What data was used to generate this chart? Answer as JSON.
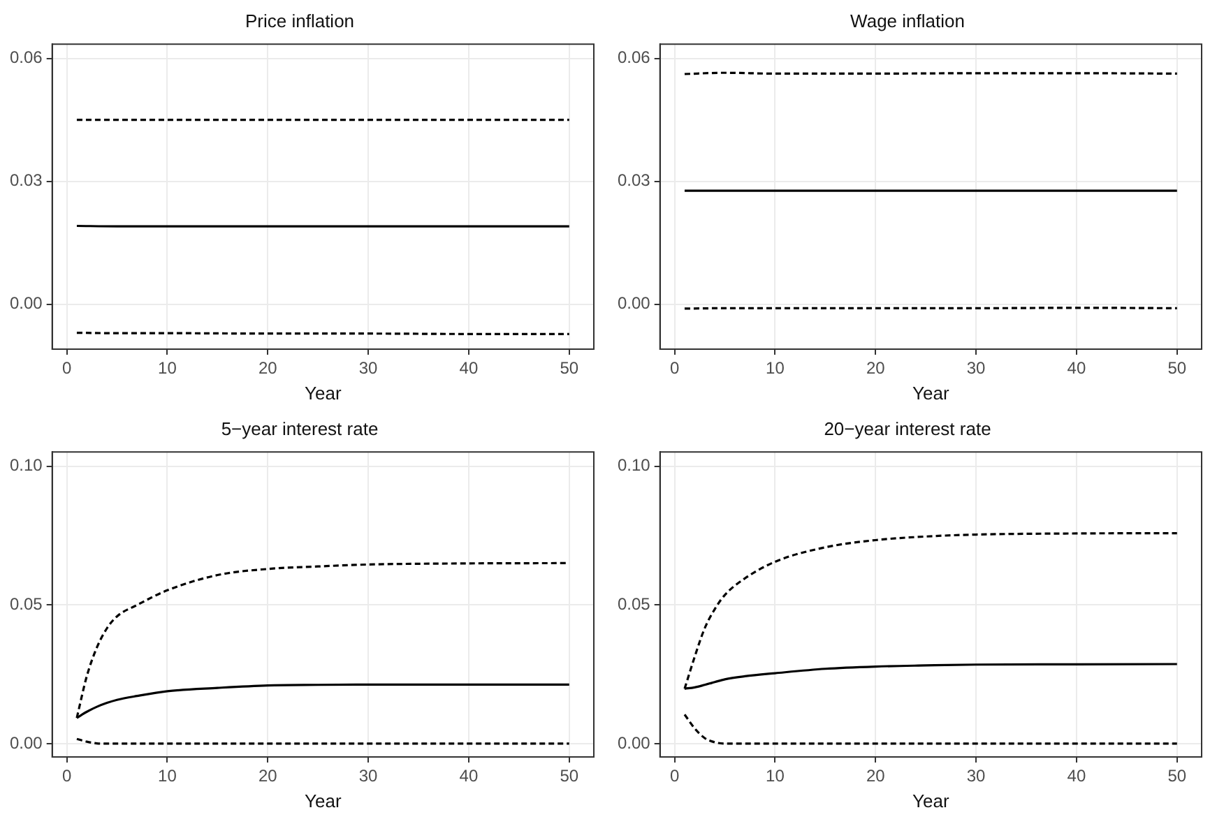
{
  "chart_data": [
    {
      "type": "line",
      "title": "Price inflation",
      "xlabel": "Year",
      "x": [
        1,
        5,
        10,
        20,
        30,
        40,
        50
      ],
      "xlim": [
        -1.45,
        52.45
      ],
      "xticks": [
        0,
        10,
        20,
        30,
        40,
        50
      ],
      "ylim": [
        -0.011,
        0.0635
      ],
      "yticks": [
        {
          "value": 0,
          "label": "0.00"
        },
        {
          "value": 0.03,
          "label": "0.03"
        },
        {
          "value": 0.06,
          "label": "0.06"
        }
      ],
      "grid": true,
      "legend": false,
      "marker": "none",
      "series": [
        {
          "color": "#000000",
          "line_style": "dashed",
          "values": [
            0.045,
            0.045,
            0.045,
            0.045,
            0.045,
            0.045,
            0.045
          ]
        },
        {
          "color": "#000000",
          "line_style": "solid",
          "values": [
            0.0191,
            0.019,
            0.019,
            0.019,
            0.019,
            0.019,
            0.019
          ]
        },
        {
          "color": "#000000",
          "line_style": "dashed",
          "values": [
            -0.007,
            -0.0071,
            -0.0071,
            -0.0072,
            -0.0072,
            -0.0073,
            -0.0073
          ]
        }
      ]
    },
    {
      "type": "line",
      "title": "Wage inflation",
      "xlabel": "Year",
      "x": [
        1,
        5,
        10,
        20,
        30,
        40,
        50
      ],
      "xlim": [
        -1.45,
        52.45
      ],
      "xticks": [
        0,
        10,
        20,
        30,
        40,
        50
      ],
      "ylim": [
        -0.011,
        0.0635
      ],
      "yticks": [
        {
          "value": 0,
          "label": "0.00"
        },
        {
          "value": 0.03,
          "label": "0.03"
        },
        {
          "value": 0.06,
          "label": "0.06"
        }
      ],
      "grid": true,
      "legend": false,
      "marker": "none",
      "series": [
        {
          "color": "#000000",
          "line_style": "dashed",
          "values": [
            0.0562,
            0.0565,
            0.0563,
            0.0563,
            0.0564,
            0.0564,
            0.0563
          ]
        },
        {
          "color": "#000000",
          "line_style": "solid",
          "values": [
            0.0277,
            0.0277,
            0.0277,
            0.0277,
            0.0277,
            0.0277,
            0.0277
          ]
        },
        {
          "color": "#000000",
          "line_style": "dashed",
          "values": [
            -0.0011,
            -0.001,
            -0.001,
            -0.001,
            -0.001,
            -0.0009,
            -0.001
          ]
        }
      ]
    },
    {
      "type": "line",
      "title": "5−year interest rate",
      "xlabel": "Year",
      "x": [
        1,
        2,
        3,
        4,
        5,
        7,
        10,
        15,
        20,
        25,
        30,
        40,
        50
      ],
      "xlim": [
        -1.45,
        52.45
      ],
      "xticks": [
        0,
        10,
        20,
        30,
        40,
        50
      ],
      "ylim": [
        -0.0048,
        0.1052
      ],
      "yticks": [
        {
          "value": 0,
          "label": "0.00"
        },
        {
          "value": 0.05,
          "label": "0.05"
        },
        {
          "value": 0.1,
          "label": "0.10"
        }
      ],
      "grid": true,
      "legend": false,
      "marker": "none",
      "series": [
        {
          "color": "#000000",
          "line_style": "dashed",
          "values": [
            0.0093,
            0.0244,
            0.0347,
            0.0416,
            0.0459,
            0.05,
            0.0553,
            0.0608,
            0.063,
            0.0639,
            0.0646,
            0.065,
            0.0651
          ]
        },
        {
          "color": "#000000",
          "line_style": "solid",
          "values": [
            0.0093,
            0.0115,
            0.0133,
            0.0147,
            0.0158,
            0.0172,
            0.0189,
            0.0201,
            0.021,
            0.0212,
            0.0213,
            0.0213,
            0.0213
          ]
        },
        {
          "color": "#000000",
          "line_style": "dashed",
          "values": [
            0.0017,
            0.0007,
            0.0001,
            0,
            0,
            0,
            0,
            0,
            0,
            0,
            0,
            0,
            0
          ]
        }
      ]
    },
    {
      "type": "line",
      "title": "20−year interest rate",
      "xlabel": "Year",
      "x": [
        1,
        2,
        3,
        4,
        5,
        7,
        10,
        15,
        20,
        25,
        30,
        40,
        50
      ],
      "xlim": [
        -1.45,
        52.45
      ],
      "xticks": [
        0,
        10,
        20,
        30,
        40,
        50
      ],
      "ylim": [
        -0.0048,
        0.1052
      ],
      "yticks": [
        {
          "value": 0,
          "label": "0.00"
        },
        {
          "value": 0.05,
          "label": "0.05"
        },
        {
          "value": 0.1,
          "label": "0.10"
        }
      ],
      "grid": true,
      "legend": false,
      "marker": "none",
      "series": [
        {
          "color": "#000000",
          "line_style": "dashed",
          "values": [
            0.0198,
            0.0313,
            0.0416,
            0.0485,
            0.0536,
            0.0596,
            0.0656,
            0.0708,
            0.0734,
            0.0747,
            0.0754,
            0.0758,
            0.0759
          ]
        },
        {
          "color": "#000000",
          "line_style": "solid",
          "values": [
            0.0198,
            0.0203,
            0.0212,
            0.0222,
            0.0232,
            0.0243,
            0.0254,
            0.027,
            0.0278,
            0.0282,
            0.0285,
            0.0286,
            0.0287
          ]
        },
        {
          "color": "#000000",
          "line_style": "dashed",
          "values": [
            0.0105,
            0.0055,
            0.002,
            0.0005,
            0,
            0,
            0,
            0,
            0,
            0,
            0,
            0,
            0
          ]
        }
      ]
    }
  ]
}
